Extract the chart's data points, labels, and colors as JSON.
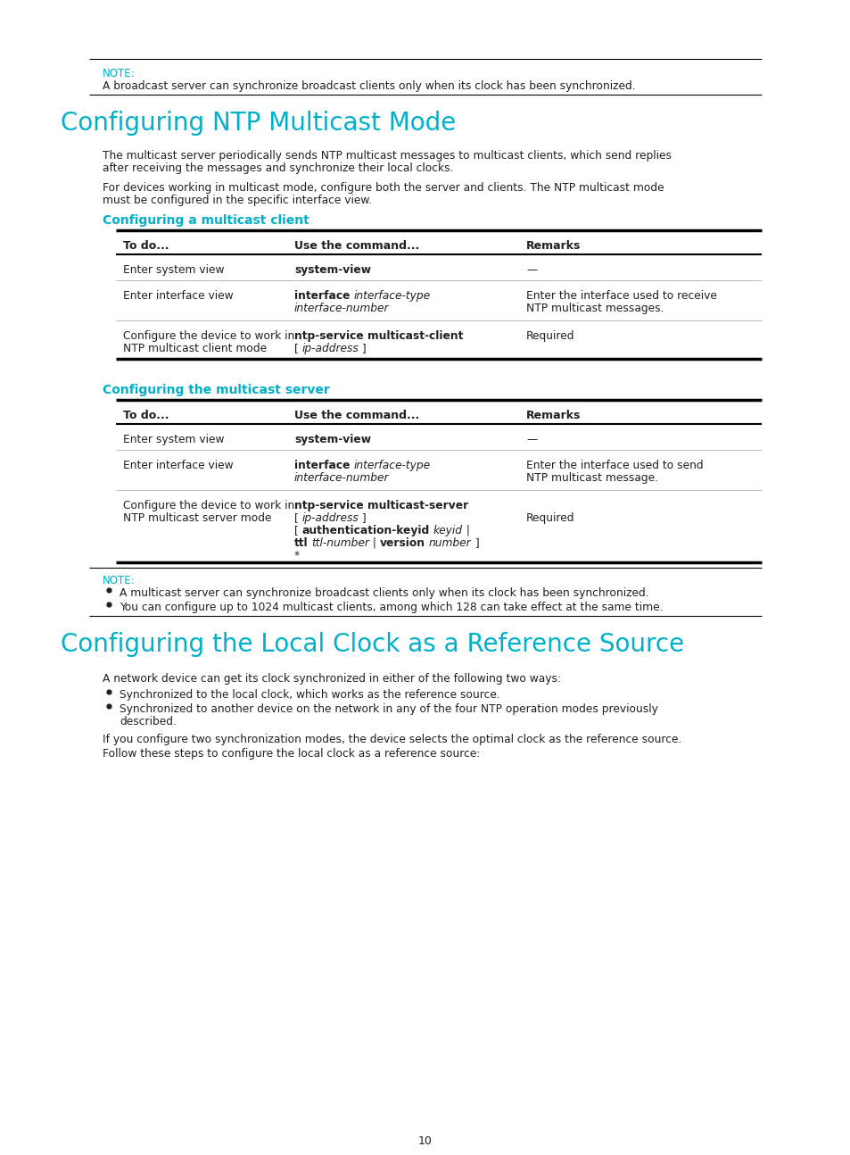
{
  "bg_color": "#ffffff",
  "text_color": "#231f20",
  "cyan_color": "#00b0ca",
  "page_number": "10",
  "note_top_label": "NOTE:",
  "note_top_text": "A broadcast server can synchronize broadcast clients only when its clock has been synchronized.",
  "section1_title": "Configuring NTP Multicast Mode",
  "section1_para1a": "The multicast server periodically sends NTP multicast messages to multicast clients, which send replies",
  "section1_para1b": "after receiving the messages and synchronize their local clocks.",
  "section1_para2a": "For devices working in multicast mode, configure both the server and clients. The NTP multicast mode",
  "section1_para2b": "must be configured in the specific interface view.",
  "subsection1_title": "Configuring a multicast client",
  "table_headers": [
    "To do...",
    "Use the command...",
    "Remarks"
  ],
  "t1r1c1": "Enter system view",
  "t1r1c2_bold": "system-view",
  "t1r1c3": "—",
  "t1r2c1": "Enter interface view",
  "t1r2c2_bold": "interface ",
  "t1r2c2_italic": "interface-type",
  "t1r2c2_italic2": "interface-number",
  "t1r2c3a": "Enter the interface used to receive",
  "t1r2c3b": "NTP multicast messages.",
  "t1r3c1a": "Configure the device to work in",
  "t1r3c1b": "NTP multicast client mode",
  "t1r3c2_bold": "ntp-service multicast-client",
  "t1r3c2_rest": "[ ",
  "t1r3c2_italic": "ip-address",
  "t1r3c2_end": " ]",
  "t1r3c3": "Required",
  "subsection2_title": "Configuring the multicast server",
  "t2r1c1": "Enter system view",
  "t2r1c2_bold": "system-view",
  "t2r1c3": "—",
  "t2r2c1": "Enter interface view",
  "t2r2c2_bold": "interface ",
  "t2r2c2_italic": "interface-type",
  "t2r2c2_italic2": "interface-number",
  "t2r2c3a": "Enter the interface used to send",
  "t2r2c3b": "NTP multicast message.",
  "t2r3c1a": "Configure the device to work in",
  "t2r3c1b": "NTP multicast server mode",
  "t2r3_line1_bold": "ntp-service multicast-server",
  "t2r3_line2": "[ ",
  "t2r3_line2_italic": "ip-address",
  "t2r3_line2_end": " ]",
  "t2r3_line3": "[ ",
  "t2r3_line3_bold": "authentication-keyid",
  "t2r3_line3_sp": " ",
  "t2r3_line3_italic": "keyid",
  "t2r3_line3_end": " |",
  "t2r3_line4_bold": "ttl",
  "t2r3_line4_sp": " ",
  "t2r3_line4_italic": "ttl-number",
  "t2r3_line4_mid": " | ",
  "t2r3_line4_bold2": "version",
  "t2r3_line4_sp2": " ",
  "t2r3_line4_italic2": "number",
  "t2r3_line4_end": " ]",
  "t2r3_line5": "*",
  "t2r3c3": "Required",
  "note_bottom_label": "NOTE:",
  "note_bottom_b1": "A multicast server can synchronize broadcast clients only when its clock has been synchronized.",
  "note_bottom_b2": "You can configure up to 1024 multicast clients, among which 128 can take effect at the same time.",
  "section2_title": "Configuring the Local Clock as a Reference Source",
  "section2_para1": "A network device can get its clock synchronized in either of the following two ways:",
  "section2_b1": "Synchronized to the local clock, which works as the reference source.",
  "section2_b2a": "Synchronized to another device on the network in any of the four NTP operation modes previously",
  "section2_b2b": "described.",
  "section2_para2": "If you configure two synchronization modes, the device selects the optimal clock as the reference source.",
  "section2_para3": "Follow these steps to configure the local clock as a reference source:"
}
